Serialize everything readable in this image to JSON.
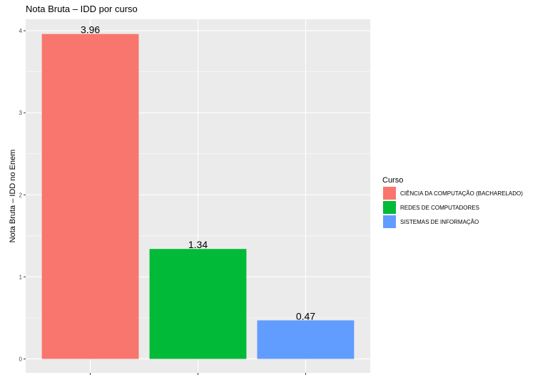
{
  "chart_data": {
    "type": "bar",
    "title": "Nota Bruta – IDD por curso",
    "xlabel": "",
    "ylabel": "Nota Bruta – IDD no Enem",
    "categories": [
      "CIÊNCIA DA COMPUTAÇÃO (BACHARELADO)",
      "REDES DE COMPUTADORES",
      "SISTEMAS DE INFORMAÇÃO"
    ],
    "values": [
      3.96,
      1.34,
      0.47
    ],
    "data_labels": [
      "3.96",
      "1.34",
      "0.47"
    ],
    "colors": [
      "#F8766D",
      "#00BA38",
      "#619CFF"
    ],
    "ylim": [
      -0.17,
      4.14
    ],
    "yticks": [
      0,
      1,
      2,
      3,
      4
    ],
    "grid": true,
    "panel_background": "#EBEBEB",
    "grid_color": "#FFFFFF",
    "legend": {
      "title": "Curso",
      "position": "right",
      "items": [
        "CIÊNCIA DA COMPUTAÇÃO (BACHARELADO)",
        "REDES DE COMPUTADORES",
        "SISTEMAS DE INFORMAÇÃO"
      ]
    }
  }
}
